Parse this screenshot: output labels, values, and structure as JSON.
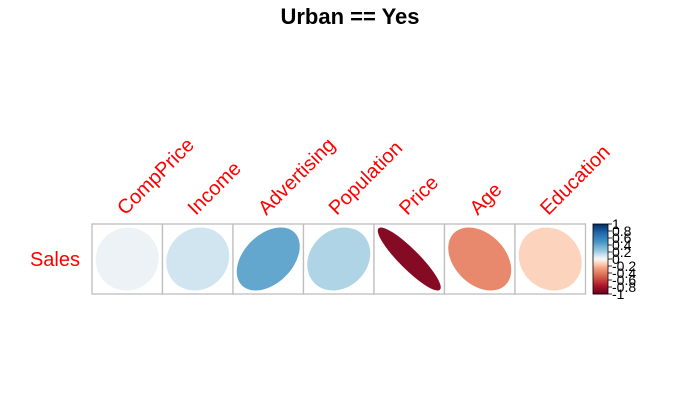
{
  "chart_data": {
    "type": "heatmap",
    "title": "Urban == Yes",
    "row_labels": [
      "Sales"
    ],
    "column_labels": [
      "CompPrice",
      "Income",
      "Advertising",
      "Population",
      "Price",
      "Age",
      "Education"
    ],
    "values": [
      [
        0.03,
        0.1,
        0.4,
        0.18,
        -0.9,
        -0.35,
        -0.12
      ]
    ],
    "value_range": [
      -1,
      1
    ],
    "colorbar_ticks": [
      "1",
      "0.8",
      "0.6",
      "0.4",
      "0.2",
      "0",
      "-0.2",
      "-0.4",
      "-0.6",
      "-0.8",
      "-1"
    ],
    "legend_position": "right",
    "grid": true,
    "colors": {
      "label_color": "#ff0000",
      "grid_color": "#bebebe",
      "negative_end": "#67001f",
      "positive_end": "#053061",
      "neutral": "#f7f7f7"
    }
  }
}
